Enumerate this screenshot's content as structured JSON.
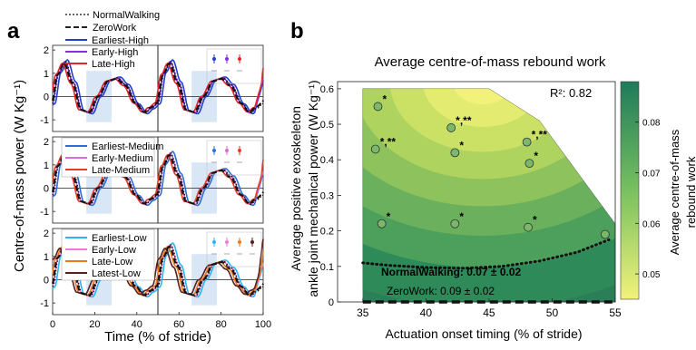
{
  "panel_a": {
    "label": "a",
    "ylabel": "Centre-of-mass power (W Kg⁻¹)",
    "xlabel": "Time (% of stride)",
    "xticks": [
      0,
      20,
      40,
      60,
      80,
      100
    ],
    "yticks": [
      -1,
      0,
      1,
      2
    ],
    "reference_legend": [
      "NormalWalking",
      "ZeroWork"
    ],
    "subplots": [
      {
        "legend": [
          {
            "name": "Earliest-High",
            "color": "#1f3fcf"
          },
          {
            "name": "Early-High",
            "color": "#8a2be2"
          },
          {
            "name": "Late-High",
            "color": "#e8222c"
          }
        ],
        "shaded": [
          [
            16,
            28
          ],
          [
            66,
            78
          ]
        ]
      },
      {
        "legend": [
          {
            "name": "Earliest-Medium",
            "color": "#2a6fd6"
          },
          {
            "name": "Early-Medium",
            "color": "#d36fd6"
          },
          {
            "name": "Late-Medium",
            "color": "#e83a2a"
          }
        ],
        "shaded": [
          [
            16,
            28
          ],
          [
            66,
            78
          ]
        ]
      },
      {
        "legend": [
          {
            "name": "Earliest-Low",
            "color": "#27b6f2"
          },
          {
            "name": "Early-Low",
            "color": "#f07bd6"
          },
          {
            "name": "Late-Low",
            "color": "#f07a1a"
          },
          {
            "name": "Latest-Low",
            "color": "#5a1e1e"
          }
        ],
        "shaded": [
          [
            16,
            28
          ],
          [
            66,
            78
          ]
        ]
      }
    ]
  },
  "panel_b": {
    "label": "b",
    "title": "Average centre-of-mass rebound work",
    "xlabel": "Actuation onset timing (% of stride)",
    "ylabel_line1": "Average positive exoskeleton",
    "ylabel_line2": "ankle joint mechanical power (W Kg⁻¹)",
    "r2": "R²: 0.82",
    "normal_label": "NormalWalking: 0.07 ± 0.02",
    "zero_label": "ZeroWork: 0.09 ± 0.02",
    "colorbar_label_line1": "Average centre-of-mass",
    "colorbar_label_line2": "rebound work",
    "colorbar_ticks": [
      "0.08",
      "0.07",
      "0.06",
      "0.05"
    ],
    "colorbar_colors": {
      "high": "#1f7a5a",
      "low": "#f2f27a"
    }
  },
  "chart_data": [
    {
      "type": "line",
      "x": [
        0,
        5,
        10,
        15,
        20,
        25,
        30,
        35,
        40,
        45,
        50,
        55,
        60,
        65,
        70,
        75,
        80,
        85,
        90,
        95,
        100
      ],
      "xlabel": "Time (% of stride)",
      "ylabel": "Centre-of-mass power (W Kg⁻¹)",
      "xlim": [
        0,
        100
      ],
      "ylim": [
        -1.5,
        2.2
      ],
      "series": [
        {
          "name": "NormalWalking",
          "values": [
            -0.3,
            1.2,
            0.6,
            -0.5,
            -0.6,
            0.5,
            0.8,
            0.3,
            -0.5,
            -0.2,
            -0.3,
            1.2,
            0.6,
            -0.5,
            -0.6,
            0.5,
            0.8,
            0.3,
            -0.5,
            -0.2,
            -0.3
          ]
        },
        {
          "name": "ZeroWork",
          "values": [
            -0.2,
            1.1,
            0.7,
            -0.4,
            -0.6,
            0.4,
            0.7,
            0.3,
            -0.4,
            -0.6,
            -0.2,
            1.1,
            0.7,
            -0.4,
            -0.6,
            0.4,
            0.7,
            0.3,
            -0.4,
            -0.6,
            -0.2
          ]
        },
        {
          "name": "Earliest-High",
          "values": [
            -0.4,
            1.4,
            0.6,
            -0.7,
            -0.5,
            0.7,
            0.9,
            0.2,
            -0.6,
            -0.4,
            -0.4,
            1.4,
            0.6,
            -0.7,
            -0.5,
            0.7,
            0.9,
            0.2,
            -0.6,
            -0.4,
            1.1
          ]
        },
        {
          "name": "Late-High",
          "values": [
            -0.3,
            1.3,
            0.5,
            -0.6,
            -0.7,
            0.3,
            0.6,
            0.8,
            0.1,
            -0.9,
            -0.3,
            1.3,
            0.5,
            -0.6,
            -0.7,
            0.3,
            0.6,
            0.8,
            0.1,
            -0.9,
            -0.3
          ]
        }
      ]
    },
    {
      "type": "heatmap",
      "title": "Average centre-of-mass rebound work",
      "xlabel": "Actuation onset timing (% of stride)",
      "ylabel": "Average positive exoskeleton ankle joint mechanical power (W Kg⁻¹)",
      "xlim": [
        33,
        55
      ],
      "ylim": [
        0,
        0.62
      ],
      "xticks": [
        35,
        40,
        45,
        50,
        55
      ],
      "yticks": [
        0,
        0.1,
        0.2,
        0.3,
        0.4,
        0.5,
        0.6
      ],
      "colorbar_range": [
        0.045,
        0.088
      ],
      "r2": 0.82,
      "points": [
        {
          "x": 36.2,
          "y": 0.55,
          "label": "*"
        },
        {
          "x": 36.0,
          "y": 0.43,
          "label": "*,**"
        },
        {
          "x": 36.5,
          "y": 0.22,
          "label": "*"
        },
        {
          "x": 42.0,
          "y": 0.49,
          "label": "*,**"
        },
        {
          "x": 42.3,
          "y": 0.42,
          "label": "*"
        },
        {
          "x": 42.3,
          "y": 0.22,
          "label": "*"
        },
        {
          "x": 48.0,
          "y": 0.45,
          "label": "*,**"
        },
        {
          "x": 48.2,
          "y": 0.39,
          "label": "*"
        },
        {
          "x": 48.1,
          "y": 0.21,
          "label": "*"
        },
        {
          "x": 54.2,
          "y": 0.19,
          "label": ""
        }
      ],
      "normal_walking_curve": {
        "x": [
          35,
          37,
          40,
          43,
          46,
          49,
          52,
          54.5
        ],
        "y": [
          0.11,
          0.103,
          0.097,
          0.095,
          0.1,
          0.115,
          0.14,
          0.175
        ]
      }
    }
  ]
}
